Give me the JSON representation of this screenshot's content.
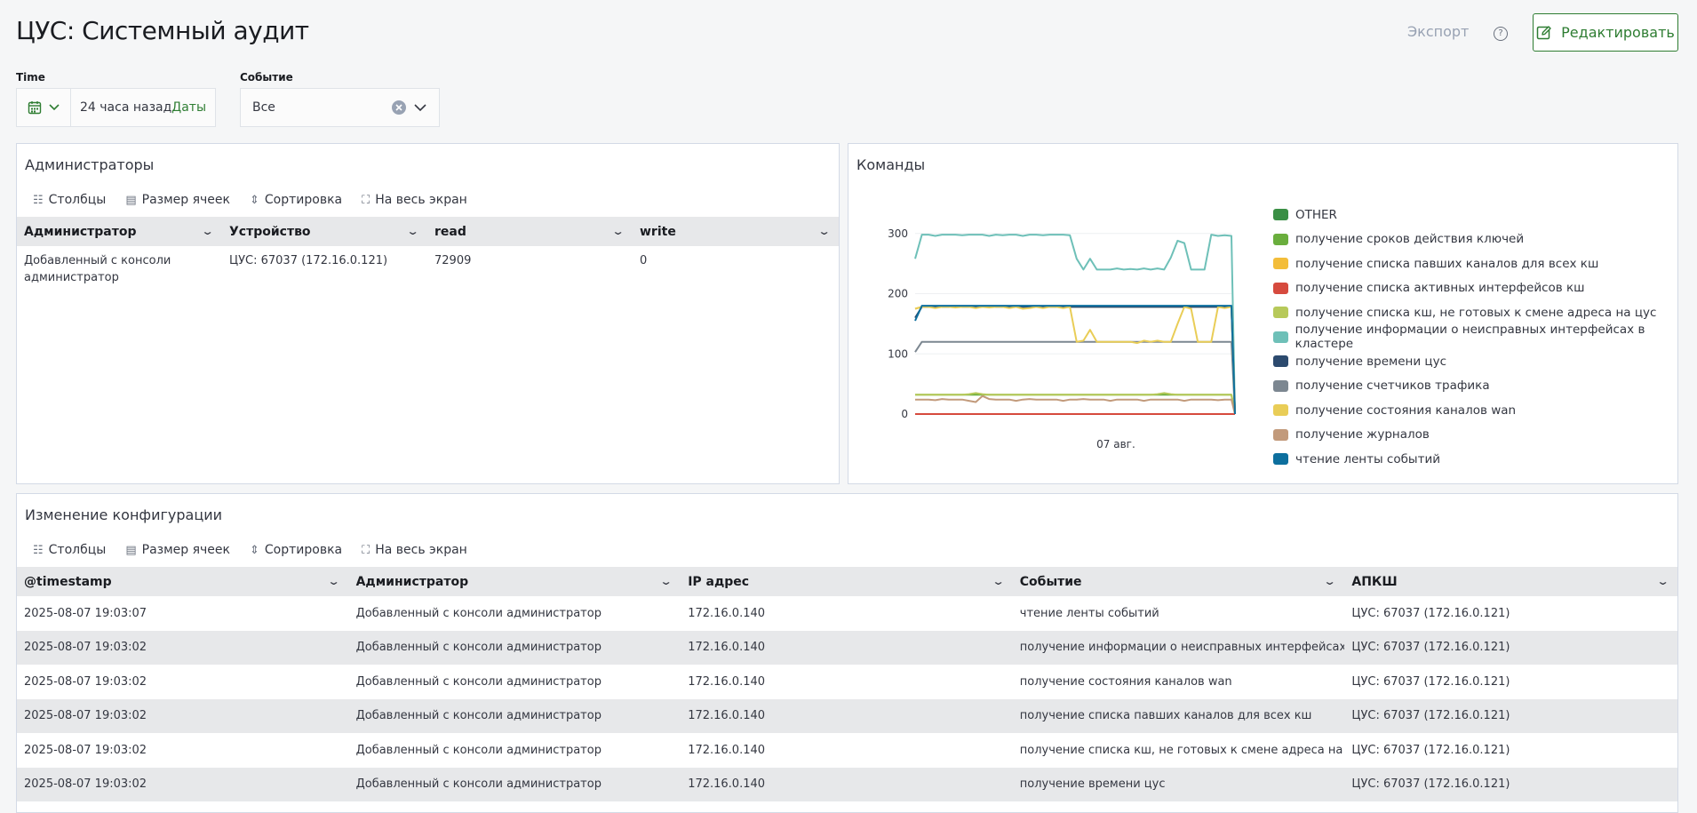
{
  "header": {
    "title": "ЦУС: Системный аудит",
    "export_label": "Экспорт",
    "help_glyph": "?",
    "edit_label": "Редактировать"
  },
  "filters": {
    "time": {
      "label": "Time",
      "value": "24 часа назад",
      "dates_link": "Даты"
    },
    "event": {
      "label": "Событие",
      "value": "Все"
    }
  },
  "toolbar": {
    "columns": "Столбцы",
    "cell_size": "Размер ячеек",
    "sort": "Сортировка",
    "fullscreen": "На весь экран"
  },
  "admins_panel": {
    "title": "Администраторы",
    "columns": [
      "Администратор",
      "Устройство",
      "read",
      "write"
    ],
    "rows": [
      [
        "Добавленный с консоли администратор",
        "ЦУС: 67037 (172.16.0.121)",
        "72909",
        "0"
      ]
    ]
  },
  "commands_panel": {
    "title": "Команды"
  },
  "chart_data": {
    "type": "line",
    "x_tick_label": "07 авг.",
    "ylim": [
      0,
      310
    ],
    "y_ticks": [
      0,
      100,
      200,
      300
    ],
    "grid": true,
    "legend_position": "right",
    "series": [
      {
        "name": "OTHER",
        "color": "#3a8f45",
        "values": [
          0,
          0,
          0,
          0,
          0,
          0,
          0,
          0,
          0,
          0,
          0,
          0,
          0,
          0,
          0,
          0,
          0,
          0,
          0,
          0,
          0,
          0,
          0,
          0,
          0,
          0,
          0,
          0,
          0,
          0,
          0,
          0,
          0,
          0,
          0,
          0,
          0,
          0,
          0,
          0,
          0,
          0,
          0,
          0,
          0,
          0,
          0,
          0,
          0
        ]
      },
      {
        "name": "получение сроков действия ключей",
        "color": "#6aae3d",
        "values": [
          32,
          32,
          32,
          32,
          32,
          32,
          32,
          32,
          32,
          32,
          32,
          32,
          32,
          32,
          32,
          32,
          32,
          32,
          32,
          32,
          32,
          32,
          32,
          32,
          32,
          32,
          32,
          32,
          32,
          32,
          32,
          32,
          32,
          32,
          32,
          32,
          32,
          32,
          32,
          32,
          32,
          32,
          32,
          32,
          32,
          32,
          32,
          32,
          0
        ]
      },
      {
        "name": "получение списка павших каналов для всех кш",
        "color": "#f3bd3a",
        "values": [
          175,
          178,
          178,
          178,
          178,
          178,
          178,
          178,
          178,
          178,
          178,
          178,
          178,
          178,
          178,
          178,
          178,
          178,
          178,
          178,
          178,
          178,
          178,
          178,
          178,
          178,
          178,
          178,
          178,
          178,
          178,
          178,
          178,
          178,
          178,
          178,
          178,
          178,
          178,
          178,
          178,
          178,
          178,
          178,
          178,
          178,
          178,
          178,
          0
        ]
      },
      {
        "name": "получение списка активных интерфейсов кш",
        "color": "#d64a3e",
        "values": [
          0,
          0,
          0,
          0,
          0,
          0,
          0,
          0,
          0,
          0,
          0,
          0,
          0,
          0,
          0,
          0,
          0,
          0,
          0,
          0,
          0,
          0,
          0,
          0,
          0,
          0,
          0,
          0,
          0,
          0,
          0,
          0,
          0,
          0,
          0,
          0,
          0,
          0,
          0,
          0,
          0,
          0,
          0,
          0,
          0,
          0,
          0,
          0,
          0
        ]
      },
      {
        "name": "получение списка кш, не готовых к смене адреса на цус",
        "color": "#b7c95a",
        "values": [
          32,
          32,
          32,
          32,
          32,
          32,
          32,
          32,
          33,
          35,
          33,
          32,
          32,
          32,
          32,
          32,
          32,
          32,
          32,
          32,
          32,
          32,
          32,
          32,
          32,
          32,
          32,
          32,
          32,
          32,
          32,
          32,
          32,
          32,
          32,
          32,
          33,
          35,
          33,
          32,
          32,
          32,
          32,
          32,
          32,
          32,
          32,
          32,
          0
        ]
      },
      {
        "name": "получение информации о неисправных интерфейсах в кластере",
        "color": "#6ec0b8",
        "values": [
          258,
          298,
          298,
          296,
          298,
          298,
          298,
          297,
          298,
          298,
          298,
          296,
          298,
          297,
          298,
          298,
          296,
          298,
          298,
          297,
          298,
          298,
          298,
          297,
          258,
          240,
          258,
          240,
          240,
          240,
          242,
          240,
          241,
          240,
          242,
          240,
          242,
          240,
          260,
          288,
          284,
          240,
          240,
          240,
          298,
          296,
          297,
          296,
          0
        ]
      },
      {
        "name": "получение времени цус",
        "color": "#2c4a6e",
        "values": [
          160,
          178,
          178,
          178,
          178,
          178,
          178,
          178,
          178,
          178,
          178,
          178,
          178,
          178,
          178,
          178,
          178,
          178,
          178,
          178,
          178,
          178,
          178,
          178,
          178,
          178,
          178,
          178,
          178,
          178,
          178,
          178,
          178,
          178,
          178,
          178,
          178,
          178,
          178,
          178,
          178,
          178,
          178,
          178,
          178,
          178,
          178,
          178,
          0
        ]
      },
      {
        "name": "получение счетчиков трафика",
        "color": "#7c8791",
        "values": [
          103,
          120,
          120,
          120,
          120,
          120,
          120,
          120,
          120,
          120,
          120,
          120,
          120,
          120,
          120,
          120,
          120,
          120,
          120,
          120,
          120,
          120,
          120,
          120,
          120,
          120,
          120,
          120,
          120,
          120,
          120,
          120,
          120,
          120,
          120,
          120,
          120,
          120,
          120,
          120,
          120,
          120,
          120,
          120,
          120,
          120,
          120,
          120,
          0
        ]
      },
      {
        "name": "получение состояния каналов wan",
        "color": "#e9cd57",
        "values": [
          175,
          178,
          178,
          176,
          178,
          178,
          177,
          178,
          178,
          176,
          178,
          177,
          178,
          178,
          176,
          178,
          175,
          176,
          178,
          176,
          178,
          178,
          176,
          178,
          120,
          122,
          140,
          120,
          120,
          120,
          120,
          120,
          120,
          118,
          122,
          120,
          122,
          120,
          120,
          150,
          178,
          175,
          120,
          120,
          120,
          178,
          176,
          178,
          0
        ]
      },
      {
        "name": "получение журналов",
        "color": "#c29a7b",
        "values": [
          24,
          24,
          24,
          23,
          25,
          24,
          24,
          24,
          22,
          20,
          30,
          25,
          24,
          24,
          24,
          22,
          24,
          25,
          24,
          24,
          24,
          24,
          22,
          24,
          24,
          25,
          24,
          24,
          24,
          22,
          24,
          24,
          24,
          24,
          22,
          24,
          24,
          24,
          24,
          24,
          22,
          24,
          24,
          24,
          24,
          23,
          24,
          24,
          0
        ]
      },
      {
        "name": "чтение ленты событий",
        "color": "#0d6f9e",
        "values": [
          155,
          180,
          180,
          180,
          180,
          180,
          180,
          180,
          180,
          180,
          180,
          180,
          180,
          180,
          180,
          180,
          180,
          180,
          180,
          180,
          180,
          180,
          180,
          180,
          180,
          180,
          180,
          180,
          180,
          180,
          180,
          180,
          180,
          180,
          180,
          180,
          180,
          180,
          180,
          180,
          180,
          180,
          180,
          180,
          180,
          180,
          180,
          180,
          0
        ]
      }
    ]
  },
  "config_panel": {
    "title": "Изменение конфигурации",
    "columns": [
      "@timestamp",
      "Администратор",
      "IP адрес",
      "Событие",
      "АПКШ"
    ],
    "rows": [
      [
        "2025-08-07 19:03:07",
        "Добавленный с консоли администратор",
        "172.16.0.140",
        "чтение ленты событий",
        "ЦУС: 67037 (172.16.0.121)"
      ],
      [
        "2025-08-07 19:03:02",
        "Добавленный с консоли администратор",
        "172.16.0.140",
        "получение информации о неисправных интерфейсах в",
        "ЦУС: 67037 (172.16.0.121)"
      ],
      [
        "2025-08-07 19:03:02",
        "Добавленный с консоли администратор",
        "172.16.0.140",
        "получение состояния каналов wan",
        "ЦУС: 67037 (172.16.0.121)"
      ],
      [
        "2025-08-07 19:03:02",
        "Добавленный с консоли администратор",
        "172.16.0.140",
        "получение списка павших каналов для всех кш",
        "ЦУС: 67037 (172.16.0.121)"
      ],
      [
        "2025-08-07 19:03:02",
        "Добавленный с консоли администратор",
        "172.16.0.140",
        "получение списка кш, не готовых к смене адреса на цус",
        "ЦУС: 67037 (172.16.0.121)"
      ],
      [
        "2025-08-07 19:03:02",
        "Добавленный с консоли администратор",
        "172.16.0.140",
        "получение времени цус",
        "ЦУС: 67037 (172.16.0.121)"
      ]
    ]
  }
}
